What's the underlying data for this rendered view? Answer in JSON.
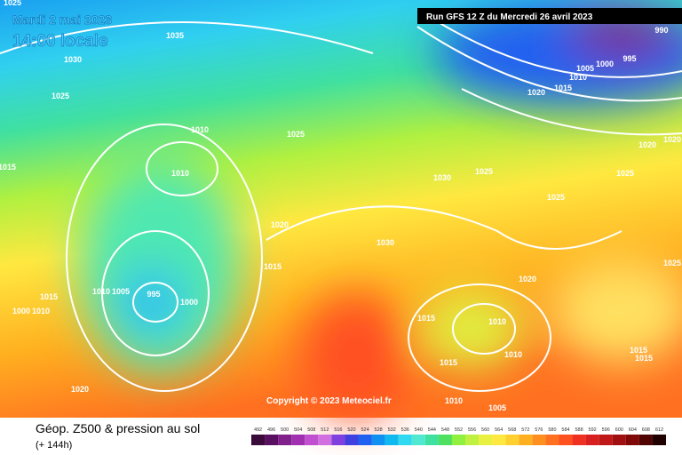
{
  "header": {
    "date": "Mardi 2 mai 2023",
    "time": "14:00 locale",
    "run": "Run GFS 12 Z du Mercredi 26 avril 2023"
  },
  "copyright": "Copyright © 2023 Meteociel.fr",
  "footer": {
    "title": "Géop. Z500 & pression au sol",
    "subtitle": "(+ 144h)"
  },
  "isobar_labels": [
    1035,
    1030,
    1025,
    1010,
    1025,
    1010,
    1015,
    1020,
    1015,
    1030,
    1030,
    1025,
    1025,
    1025,
    1020,
    1015,
    1010,
    1005,
    1000,
    995,
    990,
    1020,
    1020,
    1020,
    1010,
    1010,
    1015,
    1015,
    1010,
    1005,
    1015,
    1015,
    995,
    1000,
    1010,
    1005,
    1015,
    1000,
    1010,
    1020,
    1025,
    1025
  ],
  "scale": {
    "labels": [
      492,
      496,
      500,
      504,
      508,
      512,
      516,
      520,
      524,
      528,
      532,
      536,
      540,
      544,
      548,
      552,
      556,
      560,
      564,
      568,
      572,
      576,
      580,
      584,
      588,
      592,
      596,
      600,
      604,
      608,
      612
    ],
    "colors": [
      "#3a0a3a",
      "#5a1060",
      "#80208a",
      "#a030b0",
      "#c050d0",
      "#d070e0",
      "#8040e0",
      "#4040e0",
      "#2060f0",
      "#1090f0",
      "#10b8f0",
      "#30d8f0",
      "#50e8d0",
      "#40e0a0",
      "#50e060",
      "#90f040",
      "#c0f040",
      "#e8f040",
      "#ffe840",
      "#ffd030",
      "#ffb020",
      "#ff9020",
      "#ff7020",
      "#ff5020",
      "#f03020",
      "#d82020",
      "#c01818",
      "#a01010",
      "#800808",
      "#500404",
      "#200000"
    ]
  }
}
